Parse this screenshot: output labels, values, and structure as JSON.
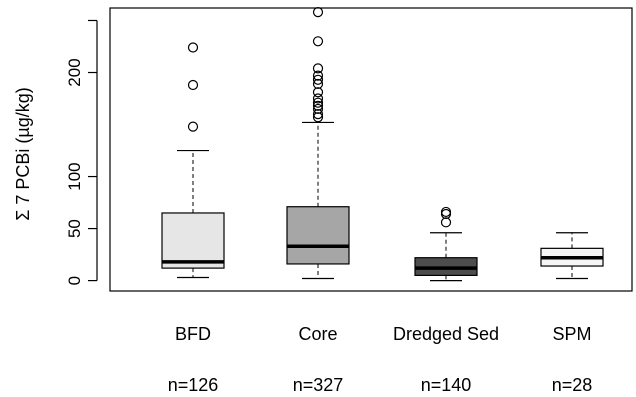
{
  "chart_data": {
    "type": "box",
    "ylabel": "Σ 7 PCBi (µg/kg)",
    "yticks": [
      0,
      50,
      100,
      200
    ],
    "ylim": [
      -10,
      262
    ],
    "groups": [
      {
        "label": "BFD",
        "n_label": "n=126",
        "fill": "#e6e6e6",
        "whisker_low": 3,
        "q1": 12,
        "median": 18,
        "q3": 65,
        "whisker_high": 125,
        "outliers": [
          148,
          188,
          224
        ]
      },
      {
        "label": "Core",
        "n_label": "n=327",
        "fill": "#a6a6a6",
        "whisker_low": 2,
        "q1": 16,
        "median": 33,
        "q3": 71,
        "whisker_high": 152,
        "outliers": [
          157,
          160,
          165,
          168,
          171,
          175,
          181,
          189,
          193,
          197,
          204,
          230,
          258
        ]
      },
      {
        "label": "Dredged Sed",
        "n_label": "n=140",
        "fill": "#4d4d4d",
        "whisker_low": 0,
        "q1": 5,
        "median": 12,
        "q3": 22,
        "whisker_high": 46,
        "outliers": [
          56,
          64,
          66
        ]
      },
      {
        "label": "SPM",
        "n_label": "n=28",
        "fill": "#f5f5f5",
        "whisker_low": 2,
        "q1": 14,
        "median": 22,
        "q3": 31,
        "whisker_high": 46,
        "outliers": []
      }
    ]
  }
}
